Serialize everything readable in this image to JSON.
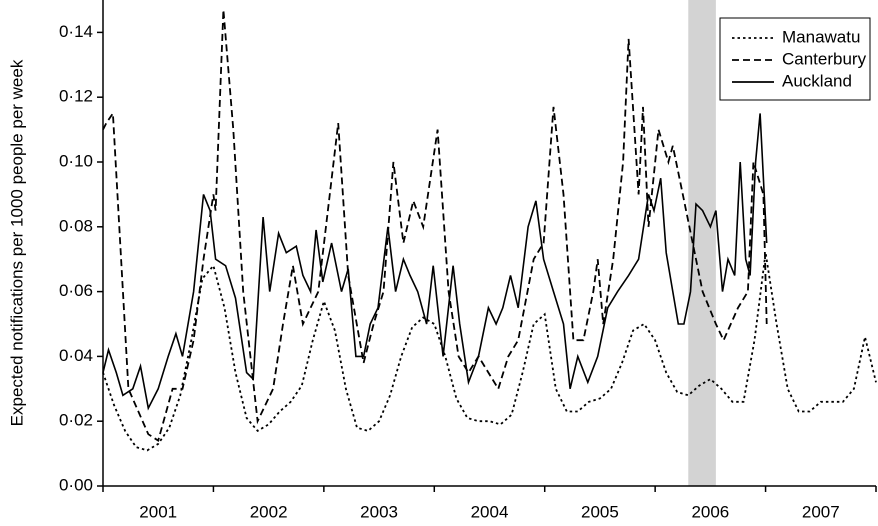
{
  "chart_data": {
    "type": "line",
    "ylabel": "Expected notifications per 1000 people per week",
    "xlim": [
      2001,
      2008
    ],
    "xticks": [
      {
        "value": 2001.5,
        "label": "2001"
      },
      {
        "value": 2002.5,
        "label": "2002"
      },
      {
        "value": 2003.5,
        "label": "2003"
      },
      {
        "value": 2004.5,
        "label": "2004"
      },
      {
        "value": 2005.5,
        "label": "2005"
      },
      {
        "value": 2006.5,
        "label": "2006"
      },
      {
        "value": 2007.5,
        "label": "2007"
      }
    ],
    "xminorticks": [
      2001,
      2002,
      2003,
      2004,
      2005,
      2006,
      2007,
      2008
    ],
    "ylim": [
      0,
      0.15
    ],
    "yticks": [
      {
        "value": 0,
        "label": "0·00"
      },
      {
        "value": 0.02,
        "label": "0·02"
      },
      {
        "value": 0.04,
        "label": "0·04"
      },
      {
        "value": 0.06,
        "label": "0·06"
      },
      {
        "value": 0.08,
        "label": "0·08"
      },
      {
        "value": 0.1,
        "label": "0·10"
      },
      {
        "value": 0.12,
        "label": "0·12"
      },
      {
        "value": 0.14,
        "label": "0·14"
      }
    ],
    "shaded_region": [
      2006.3,
      2006.55
    ],
    "shade_color": "#d3d3d3",
    "legend": "upper right",
    "series": [
      {
        "name": "Manawatu",
        "color": "#000000",
        "style": "dotted",
        "x": [
          2001.0,
          2001.1,
          2001.2,
          2001.3,
          2001.4,
          2001.5,
          2001.6,
          2001.7,
          2001.8,
          2001.9,
          2002.0,
          2002.1,
          2002.2,
          2002.3,
          2002.4,
          2002.5,
          2002.6,
          2002.7,
          2002.8,
          2002.9,
          2003.0,
          2003.1,
          2003.2,
          2003.3,
          2003.4,
          2003.5,
          2003.6,
          2003.7,
          2003.8,
          2003.9,
          2004.0,
          2004.1,
          2004.2,
          2004.3,
          2004.4,
          2004.5,
          2004.6,
          2004.7,
          2004.8,
          2004.9,
          2005.0,
          2005.1,
          2005.2,
          2005.3,
          2005.4,
          2005.5,
          2005.6,
          2005.7,
          2005.8,
          2005.9,
          2006.0,
          2006.1,
          2006.2,
          2006.3,
          2006.4,
          2006.5,
          2006.6,
          2006.7,
          2006.8,
          2006.9,
          2007.0,
          2007.1,
          2007.2,
          2007.3,
          2007.4,
          2007.5,
          2007.6,
          2007.7,
          2007.8,
          2007.9,
          2008.0
        ],
        "values": [
          0.035,
          0.025,
          0.017,
          0.012,
          0.011,
          0.013,
          0.018,
          0.028,
          0.045,
          0.064,
          0.068,
          0.055,
          0.035,
          0.021,
          0.017,
          0.019,
          0.023,
          0.026,
          0.031,
          0.045,
          0.057,
          0.048,
          0.03,
          0.018,
          0.017,
          0.02,
          0.028,
          0.04,
          0.049,
          0.052,
          0.05,
          0.04,
          0.027,
          0.021,
          0.02,
          0.02,
          0.019,
          0.022,
          0.035,
          0.05,
          0.053,
          0.03,
          0.023,
          0.023,
          0.026,
          0.027,
          0.03,
          0.038,
          0.048,
          0.05,
          0.045,
          0.035,
          0.029,
          0.028,
          0.031,
          0.033,
          0.03,
          0.026,
          0.026,
          0.045,
          0.072,
          0.05,
          0.03,
          0.023,
          0.023,
          0.026,
          0.026,
          0.026,
          0.03,
          0.046,
          0.032
        ]
      },
      {
        "name": "Canterbury",
        "color": "#000000",
        "style": "dashed",
        "x": [
          2001.0,
          2001.03,
          2001.09,
          2001.23,
          2001.41,
          2001.5,
          2001.63,
          2001.72,
          2001.82,
          2001.91,
          2002.0,
          2002.02,
          2002.09,
          2002.18,
          2002.27,
          2002.4,
          2002.54,
          2002.63,
          2002.72,
          2002.81,
          2002.95,
          2003.13,
          2003.22,
          2003.36,
          2003.45,
          2003.54,
          2003.63,
          2003.72,
          2003.81,
          2003.9,
          2004.03,
          2004.13,
          2004.22,
          2004.31,
          2004.4,
          2004.58,
          2004.67,
          2004.76,
          2004.9,
          2004.99,
          2005.08,
          2005.17,
          2005.26,
          2005.35,
          2005.44,
          2005.48,
          2005.53,
          2005.62,
          2005.71,
          2005.76,
          2005.85,
          2005.89,
          2005.94,
          2006.03,
          2006.12,
          2006.16,
          2006.25,
          2006.34,
          2006.43,
          2006.55,
          2006.62,
          2006.75,
          2006.84,
          2006.89,
          2006.98,
          2007.01
        ],
        "values": [
          0.11,
          0.112,
          0.115,
          0.03,
          0.016,
          0.014,
          0.03,
          0.03,
          0.045,
          0.07,
          0.09,
          0.085,
          0.147,
          0.11,
          0.06,
          0.02,
          0.03,
          0.05,
          0.068,
          0.05,
          0.06,
          0.112,
          0.065,
          0.038,
          0.05,
          0.06,
          0.1,
          0.075,
          0.088,
          0.08,
          0.11,
          0.06,
          0.04,
          0.035,
          0.04,
          0.03,
          0.04,
          0.045,
          0.07,
          0.075,
          0.117,
          0.09,
          0.045,
          0.045,
          0.06,
          0.07,
          0.05,
          0.07,
          0.1,
          0.138,
          0.09,
          0.117,
          0.08,
          0.11,
          0.1,
          0.105,
          0.09,
          0.075,
          0.06,
          0.05,
          0.045,
          0.055,
          0.06,
          0.1,
          0.09,
          0.05
        ]
      },
      {
        "name": "Auckland",
        "color": "#000000",
        "style": "solid",
        "x": [
          2001.0,
          2001.05,
          2001.12,
          2001.18,
          2001.27,
          2001.34,
          2001.41,
          2001.5,
          2001.59,
          2001.66,
          2001.72,
          2001.82,
          2001.91,
          2001.97,
          2002.02,
          2002.11,
          2002.2,
          2002.3,
          2002.36,
          2002.45,
          2002.51,
          2002.59,
          2002.66,
          2002.75,
          2002.81,
          2002.88,
          2002.93,
          2002.99,
          2003.07,
          2003.16,
          2003.22,
          2003.29,
          2003.36,
          2003.42,
          2003.49,
          2003.58,
          2003.65,
          2003.72,
          2003.78,
          2003.85,
          2003.93,
          2003.99,
          2004.08,
          2004.17,
          2004.23,
          2004.31,
          2004.4,
          2004.49,
          2004.56,
          2004.62,
          2004.69,
          2004.76,
          2004.85,
          2004.92,
          2004.99,
          2005.08,
          2005.17,
          2005.23,
          2005.3,
          2005.39,
          2005.48,
          2005.57,
          2005.66,
          2005.76,
          2005.85,
          2005.94,
          2005.99,
          2006.05,
          2006.1,
          2006.16,
          2006.21,
          2006.26,
          2006.32,
          2006.37,
          2006.43,
          2006.5,
          2006.55,
          2006.61,
          2006.66,
          2006.72,
          2006.77,
          2006.82,
          2006.86,
          2006.91,
          2006.95,
          2007.01
        ],
        "values": [
          0.035,
          0.042,
          0.035,
          0.028,
          0.03,
          0.037,
          0.024,
          0.03,
          0.04,
          0.047,
          0.04,
          0.06,
          0.09,
          0.085,
          0.07,
          0.068,
          0.058,
          0.035,
          0.033,
          0.083,
          0.06,
          0.078,
          0.072,
          0.074,
          0.065,
          0.06,
          0.079,
          0.063,
          0.075,
          0.06,
          0.067,
          0.04,
          0.04,
          0.05,
          0.055,
          0.08,
          0.06,
          0.07,
          0.065,
          0.06,
          0.05,
          0.068,
          0.04,
          0.068,
          0.05,
          0.032,
          0.04,
          0.055,
          0.05,
          0.055,
          0.065,
          0.055,
          0.08,
          0.088,
          0.07,
          0.06,
          0.05,
          0.03,
          0.04,
          0.032,
          0.04,
          0.055,
          0.06,
          0.065,
          0.07,
          0.09,
          0.085,
          0.095,
          0.072,
          0.06,
          0.05,
          0.05,
          0.06,
          0.087,
          0.085,
          0.08,
          0.085,
          0.06,
          0.07,
          0.065,
          0.1,
          0.07,
          0.065,
          0.1,
          0.115,
          0.075
        ]
      }
    ]
  }
}
